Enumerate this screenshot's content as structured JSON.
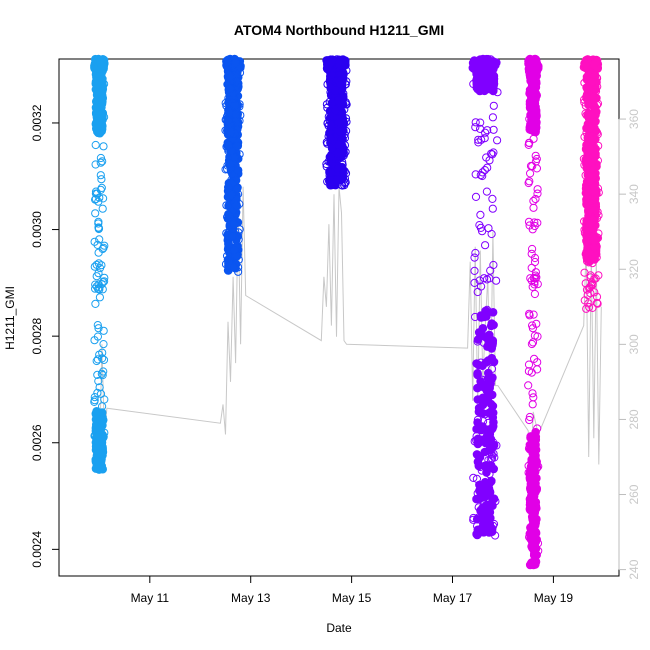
{
  "chart_data": {
    "type": "scatter",
    "title": "ATOM4 Northbound H1211_GMI",
    "xlabel": "Date",
    "ylabel": "H1211_GMI",
    "x_ticks": [
      "May 11",
      "May 13",
      "May 15",
      "May 17",
      "May 19"
    ],
    "x_tick_days": [
      11,
      13,
      15,
      17,
      19
    ],
    "xlim_days": [
      9.2,
      20.3
    ],
    "y_ticks": [
      0.0024,
      0.0026,
      0.0028,
      0.003,
      0.0032
    ],
    "y_tick_labels": [
      "0.0024",
      "0.0026",
      "0.0028",
      "0.0030",
      "0.0032"
    ],
    "ylim": [
      0.00235,
      0.00332
    ],
    "y2_ticks": [
      240,
      260,
      280,
      300,
      320,
      340,
      360
    ],
    "y2_tick_labels": [
      "240",
      "260",
      "280",
      "300",
      "320",
      "340",
      "360"
    ],
    "y2lim": [
      238.3,
      376
    ],
    "grid": false,
    "secondary_line_color": "#c8c8c8",
    "series": [
      {
        "color": "#1aa0f0",
        "x_range_days": [
          9.9,
          10.1
        ],
        "y_max": 0.00332,
        "y_min": 0.00255,
        "filled_lower": [
          0.00255,
          0.00266
        ],
        "filled_upper": [
          0.00318,
          0.00332
        ]
      },
      {
        "color": "#0a55f0",
        "x_range_days": [
          12.5,
          12.8
        ],
        "y_max": 0.00332,
        "y_min": 0.00292,
        "filled_lower": [
          0.00292,
          0.00318
        ],
        "filled_upper": [
          0.00318,
          0.00332
        ]
      },
      {
        "color": "#2a00f0",
        "x_range_days": [
          14.5,
          14.9
        ],
        "y_max": 0.00332,
        "y_min": 0.00308,
        "filled_lower": [
          0.00308,
          0.00326
        ],
        "filled_upper": [
          0.00326,
          0.00332
        ]
      },
      {
        "color": "#8000ff",
        "x_range_days": [
          17.4,
          17.9
        ],
        "y_max": 0.00332,
        "y_min": 0.00242,
        "filled_lower": [
          0.00242,
          0.00285
        ],
        "filled_upper": [
          0.00326,
          0.00332
        ]
      },
      {
        "color": "#e100e6",
        "x_range_days": [
          18.5,
          18.7
        ],
        "y_max": 0.00332,
        "y_min": 0.00237,
        "filled_lower": [
          0.00237,
          0.00262
        ],
        "filled_upper": [
          0.00318,
          0.00332
        ]
      },
      {
        "color": "#ff10c0",
        "x_range_days": [
          19.6,
          19.9
        ],
        "y_max": 0.00332,
        "y_min": 0.00285,
        "filled_lower": [
          0.00294,
          0.0031
        ],
        "filled_upper": [
          0.00306,
          0.00332
        ]
      }
    ],
    "secondary_line": [
      {
        "day": 9.95,
        "y2": 281
      },
      {
        "day": 10.0,
        "y2": 268
      },
      {
        "day": 10.05,
        "y2": 300
      },
      {
        "day": 10.1,
        "y2": 276
      },
      {
        "day": 10.15,
        "y2": 283
      },
      {
        "day": 12.4,
        "y2": 279
      },
      {
        "day": 12.45,
        "y2": 284
      },
      {
        "day": 12.5,
        "y2": 276
      },
      {
        "day": 12.55,
        "y2": 306
      },
      {
        "day": 12.6,
        "y2": 290
      },
      {
        "day": 12.65,
        "y2": 318
      },
      {
        "day": 12.7,
        "y2": 295
      },
      {
        "day": 12.75,
        "y2": 335
      },
      {
        "day": 12.8,
        "y2": 300
      },
      {
        "day": 12.85,
        "y2": 342
      },
      {
        "day": 12.9,
        "y2": 313
      },
      {
        "day": 14.4,
        "y2": 301
      },
      {
        "day": 14.45,
        "y2": 318
      },
      {
        "day": 14.5,
        "y2": 310
      },
      {
        "day": 14.55,
        "y2": 332
      },
      {
        "day": 14.6,
        "y2": 305
      },
      {
        "day": 14.65,
        "y2": 340
      },
      {
        "day": 14.7,
        "y2": 302
      },
      {
        "day": 14.75,
        "y2": 342
      },
      {
        "day": 14.8,
        "y2": 335
      },
      {
        "day": 14.85,
        "y2": 301
      },
      {
        "day": 14.9,
        "y2": 300
      },
      {
        "day": 17.3,
        "y2": 299
      },
      {
        "day": 17.35,
        "y2": 322
      },
      {
        "day": 17.4,
        "y2": 285
      },
      {
        "day": 17.45,
        "y2": 326
      },
      {
        "day": 17.5,
        "y2": 283
      },
      {
        "day": 17.55,
        "y2": 325
      },
      {
        "day": 17.6,
        "y2": 290
      },
      {
        "day": 17.65,
        "y2": 305
      },
      {
        "day": 17.7,
        "y2": 318
      },
      {
        "day": 17.75,
        "y2": 282
      },
      {
        "day": 17.8,
        "y2": 330
      },
      {
        "day": 17.85,
        "y2": 289
      },
      {
        "day": 17.9,
        "y2": 289
      },
      {
        "day": 18.5,
        "y2": 277
      },
      {
        "day": 18.55,
        "y2": 264
      },
      {
        "day": 18.6,
        "y2": 282
      },
      {
        "day": 18.7,
        "y2": 276
      },
      {
        "day": 19.6,
        "y2": 305
      },
      {
        "day": 19.65,
        "y2": 327
      },
      {
        "day": 19.7,
        "y2": 270
      },
      {
        "day": 19.75,
        "y2": 324
      },
      {
        "day": 19.8,
        "y2": 275
      },
      {
        "day": 19.85,
        "y2": 322
      },
      {
        "day": 19.9,
        "y2": 268
      },
      {
        "day": 19.95,
        "y2": 310
      }
    ]
  }
}
